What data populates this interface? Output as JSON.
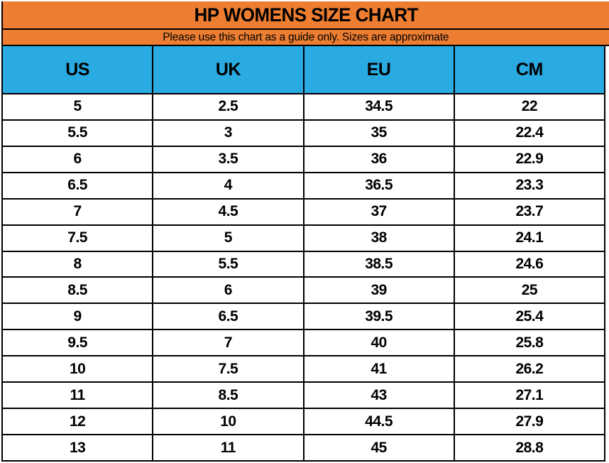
{
  "header": {
    "title": "HP WOMENS SIZE CHART",
    "subtitle": "Please use this chart as a guide only. Sizes are approximate"
  },
  "colors": {
    "banner_orange": "#ED7D31",
    "header_blue": "#29ABE2",
    "grid_black": "#000000",
    "text_black": "#000000",
    "page_white": "#ffffff"
  },
  "chart_data": {
    "type": "table",
    "title": "HP WOMENS SIZE CHART",
    "subtitle": "Please use this chart as a guide only. Sizes are approximate",
    "columns": [
      "US",
      "UK",
      "EU",
      "CM"
    ],
    "rows": [
      [
        "5",
        "2.5",
        "34.5",
        "22"
      ],
      [
        "5.5",
        "3",
        "35",
        "22.4"
      ],
      [
        "6",
        "3.5",
        "36",
        "22.9"
      ],
      [
        "6.5",
        "4",
        "36.5",
        "23.3"
      ],
      [
        "7",
        "4.5",
        "37",
        "23.7"
      ],
      [
        "7.5",
        "5",
        "38",
        "24.1"
      ],
      [
        "8",
        "5.5",
        "38.5",
        "24.6"
      ],
      [
        "8.5",
        "6",
        "39",
        "25"
      ],
      [
        "9",
        "6.5",
        "39.5",
        "25.4"
      ],
      [
        "9.5",
        "7",
        "40",
        "25.8"
      ],
      [
        "10",
        "7.5",
        "41",
        "26.2"
      ],
      [
        "11",
        "8.5",
        "43",
        "27.1"
      ],
      [
        "12",
        "10",
        "44.5",
        "27.9"
      ],
      [
        "13",
        "11",
        "45",
        "28.8"
      ]
    ]
  }
}
